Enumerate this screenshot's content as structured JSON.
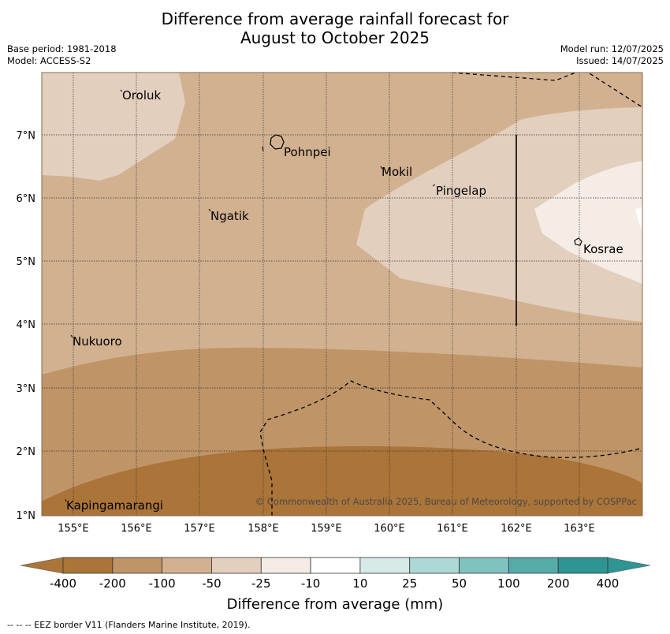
{
  "title": {
    "line1": "Difference from average rainfall forecast for",
    "line2": "August to October 2025"
  },
  "meta": {
    "base_period": "Base period: 1981-2018",
    "model": "Model: ACCESS-S2",
    "model_run": "Model run: 12/07/2025",
    "issued": "Issued: 14/07/2025"
  },
  "map": {
    "lat_ticks": [
      "1°N",
      "2°N",
      "3°N",
      "4°N",
      "5°N",
      "6°N",
      "7°N"
    ],
    "lon_ticks": [
      "155°E",
      "156°E",
      "157°E",
      "158°E",
      "159°E",
      "160°E",
      "161°E",
      "162°E",
      "163°E"
    ],
    "places": [
      "Oroluk",
      "Pohnpei",
      "Mokil",
      "Pingelap",
      "Ngatik",
      "Kosrae",
      "Nukuoro",
      "Kapingamarangi"
    ],
    "copyright": "© Commonwealth of Australia 2025, Bureau of Meteorology, supported by COSPPac"
  },
  "colorbar": {
    "labels": [
      "-400",
      "-200",
      "-100",
      "-50",
      "-25",
      "-10",
      "10",
      "25",
      "50",
      "100",
      "200",
      "400"
    ],
    "colors": [
      "#ab7438",
      "#bf9467",
      "#d2b190",
      "#e3cfbd",
      "#f5ece5",
      "#ffffff",
      "#d6eae8",
      "#acd8d6",
      "#80c2bf",
      "#56aba9",
      "#2f9593"
    ],
    "title": "Difference from average (mm)"
  },
  "footnote": "--  --  -- EEZ border V11 (Flanders Marine Institute, 2019)."
}
